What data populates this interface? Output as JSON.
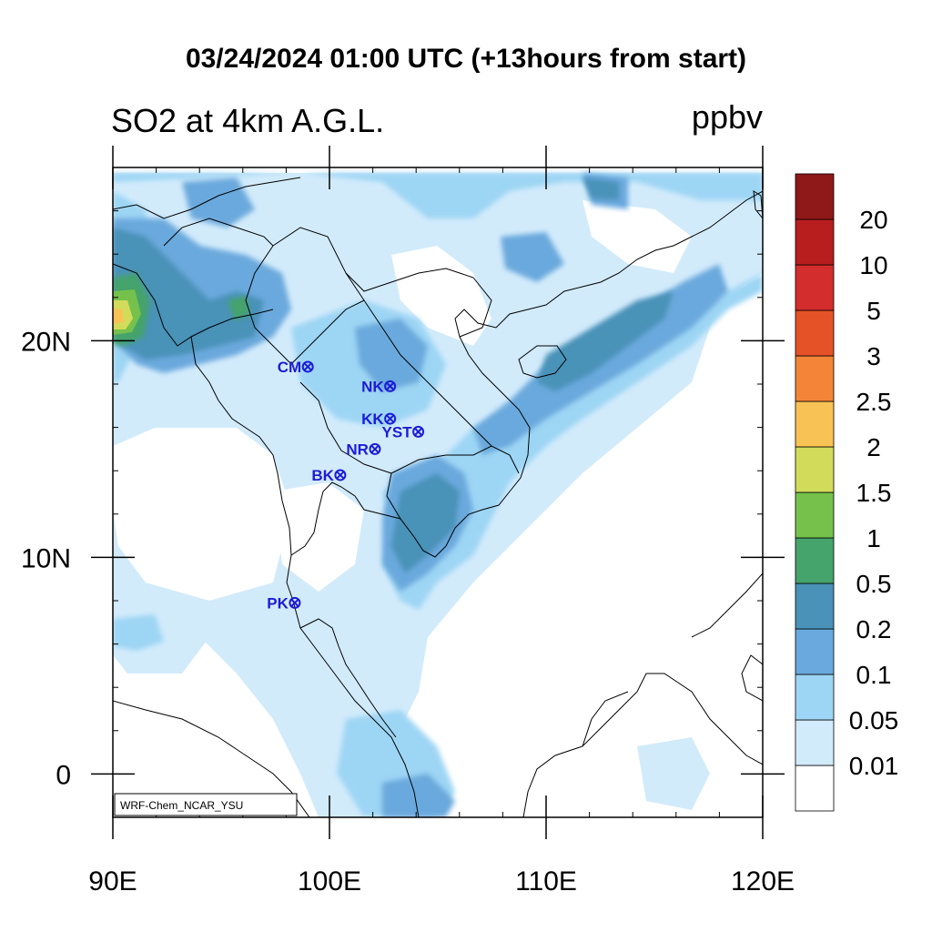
{
  "title": "03/24/2024 01:00 UTC (+13hours from start)",
  "subtitle_left": "SO2 at 4km A.G.L.",
  "subtitle_right": "ppbv",
  "credit": "WRF-Chem_NCAR_YSU",
  "map": {
    "lon_range": [
      90,
      120
    ],
    "lat_range": [
      -2,
      28
    ],
    "x_ticks": [
      {
        "lon": 90,
        "label": "90E"
      },
      {
        "lon": 100,
        "label": "100E"
      },
      {
        "lon": 110,
        "label": "110E"
      },
      {
        "lon": 120,
        "label": "120E"
      }
    ],
    "y_ticks": [
      {
        "lat": 0,
        "label": "0"
      },
      {
        "lat": 10,
        "label": "10N"
      },
      {
        "lat": 20,
        "label": "20N"
      }
    ]
  },
  "stations": [
    {
      "code": "CM",
      "lon": 99.0,
      "lat": 18.8
    },
    {
      "code": "NK",
      "lon": 102.8,
      "lat": 17.9
    },
    {
      "code": "KK",
      "lon": 102.8,
      "lat": 16.4
    },
    {
      "code": "YST",
      "lon": 104.1,
      "lat": 15.8
    },
    {
      "code": "NR",
      "lon": 102.1,
      "lat": 15.0
    },
    {
      "code": "BK",
      "lon": 100.5,
      "lat": 13.8
    },
    {
      "code": "PK",
      "lon": 98.4,
      "lat": 7.9
    }
  ],
  "colorbar": {
    "levels": [
      "0.01",
      "0.05",
      "0.1",
      "0.2",
      "0.5",
      "1",
      "1.5",
      "2",
      "2.5",
      "3",
      "5",
      "10",
      "20"
    ],
    "colors": [
      "#ffffff",
      "#d2ebfb",
      "#9dd5f4",
      "#6aa9dd",
      "#4a92b8",
      "#45a36c",
      "#75c14c",
      "#d2dc5a",
      "#f9c254",
      "#f48538",
      "#e65228",
      "#d42d2d",
      "#b81e1e",
      "#8f1818"
    ]
  }
}
